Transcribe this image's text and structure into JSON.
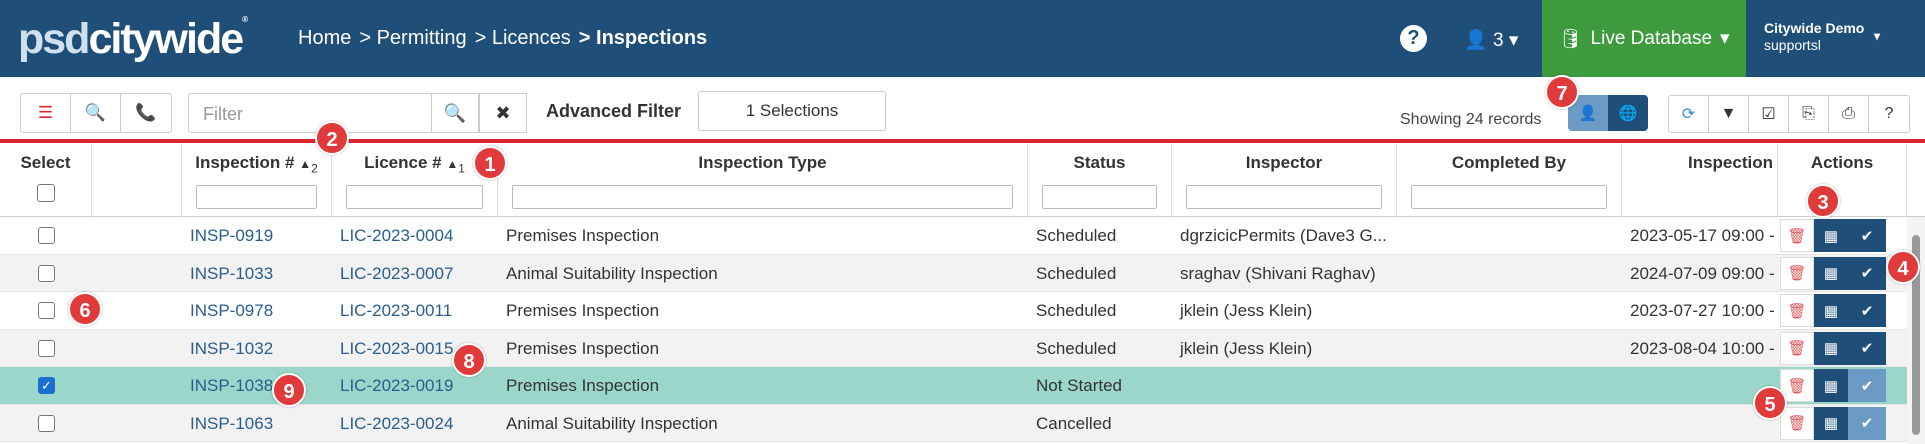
{
  "app": {
    "logo_part1": "psd",
    "logo_part2": "citywide",
    "logo_mark": "®",
    "breadcrumb": [
      "Home",
      "> Permitting",
      "> Licences",
      "> Inspections"
    ],
    "help_icon": "?",
    "users_count": "3",
    "database_label": "Live Database",
    "account_name": "Citywide Demo",
    "account_user": "supportsl",
    "colors": {
      "nav": "#1f4e79",
      "live": "#3d9b3d",
      "accent_red": "#d9272e",
      "selected_row": "#9ad6c9",
      "badge": "#e03a3a"
    }
  },
  "toolbar": {
    "filter_placeholder": "Filter",
    "advanced_filter_label": "Advanced Filter",
    "selections_label": "1 Selections",
    "records_label": "Showing 24 records"
  },
  "grid": {
    "headers": {
      "select": "Select",
      "inspection_no": "Inspection #",
      "inspection_sort": "2",
      "licence_no": "Licence #",
      "licence_sort": "1",
      "inspection_type": "Inspection Type",
      "status": "Status",
      "inspector": "Inspector",
      "completed_by": "Completed By",
      "inspection_date": "Inspection",
      "actions": "Actions"
    },
    "rows": [
      {
        "checked": false,
        "inspection": "INSP-0919",
        "licence": "LIC-2023-0004",
        "type": "Premises Inspection",
        "status": "Scheduled",
        "inspector": "dgrzicicPermits (Dave3 G...",
        "completed_by": "",
        "date": "2023-05-17 09:00 -"
      },
      {
        "checked": false,
        "inspection": "INSP-1033",
        "licence": "LIC-2023-0007",
        "type": "Animal Suitability Inspection",
        "status": "Scheduled",
        "inspector": "sraghav (Shivani Raghav)",
        "completed_by": "",
        "date": "2024-07-09 09:00 -"
      },
      {
        "checked": false,
        "inspection": "INSP-0978",
        "licence": "LIC-2023-0011",
        "type": "Premises Inspection",
        "status": "Scheduled",
        "inspector": "jklein (Jess Klein)",
        "completed_by": "",
        "date": "2023-07-27 10:00 -"
      },
      {
        "checked": false,
        "inspection": "INSP-1032",
        "licence": "LIC-2023-0015",
        "type": "Premises Inspection",
        "status": "Scheduled",
        "inspector": "jklein (Jess Klein)",
        "completed_by": "",
        "date": "2023-08-04 10:00 -"
      },
      {
        "checked": true,
        "inspection": "INSP-1038",
        "licence": "LIC-2023-0019",
        "type": "Premises Inspection",
        "status": "Not Started",
        "inspector": "",
        "completed_by": "",
        "date": ""
      },
      {
        "checked": false,
        "inspection": "INSP-1063",
        "licence": "LIC-2023-0024",
        "type": "Animal Suitability Inspection",
        "status": "Cancelled",
        "inspector": "",
        "completed_by": "",
        "date": ""
      }
    ]
  },
  "callouts": {
    "b1": "1",
    "b2": "2",
    "b3": "3",
    "b4": "4",
    "b5": "5",
    "b6": "6",
    "b7": "7",
    "b8": "8",
    "b9": "9"
  }
}
